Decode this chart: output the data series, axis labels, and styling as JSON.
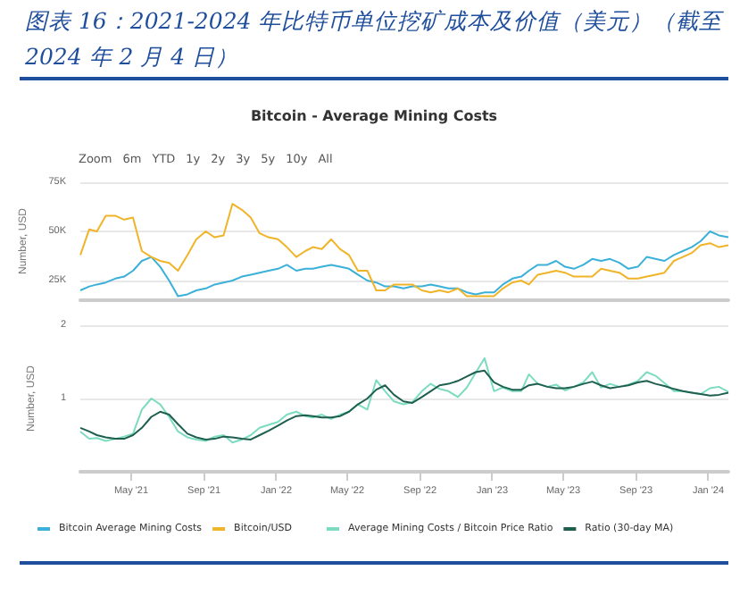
{
  "chart_data": [
    {
      "type": "line",
      "title": "图表 16：2021-2024 年比特币单位挖矿成本及价值（美元）（截至 2024 年 2 月 4 日）",
      "subtitle": "Bitcoin - Average Mining Costs",
      "ylabel": "Number, USD",
      "annotations": [
        "Zoom",
        "6m",
        "YTD",
        "1y",
        "2y",
        "3y",
        "5y",
        "10y",
        "All"
      ],
      "x": [
        "2021-02-04",
        "2021-02-19",
        "2021-03-04",
        "2021-03-19",
        "2021-04-04",
        "2021-04-19",
        "2021-05-04",
        "2021-05-19",
        "2021-06-04",
        "2021-06-19",
        "2021-07-04",
        "2021-07-19",
        "2021-08-04",
        "2021-08-19",
        "2021-09-04",
        "2021-09-19",
        "2021-10-04",
        "2021-10-19",
        "2021-11-04",
        "2021-11-19",
        "2021-12-04",
        "2021-12-19",
        "2022-01-04",
        "2022-01-19",
        "2022-02-04",
        "2022-02-19",
        "2022-03-04",
        "2022-03-19",
        "2022-04-04",
        "2022-04-19",
        "2022-05-04",
        "2022-05-19",
        "2022-06-04",
        "2022-06-19",
        "2022-07-04",
        "2022-07-19",
        "2022-08-04",
        "2022-08-19",
        "2022-09-04",
        "2022-09-19",
        "2022-10-04",
        "2022-10-19",
        "2022-11-04",
        "2022-11-19",
        "2022-12-04",
        "2022-12-19",
        "2023-01-04",
        "2023-01-19",
        "2023-02-04",
        "2023-02-19",
        "2023-03-04",
        "2023-03-19",
        "2023-04-04",
        "2023-04-19",
        "2023-05-04",
        "2023-05-19",
        "2023-06-04",
        "2023-06-19",
        "2023-07-04",
        "2023-07-19",
        "2023-08-04",
        "2023-08-19",
        "2023-09-04",
        "2023-09-19",
        "2023-10-04",
        "2023-10-19",
        "2023-11-04",
        "2023-11-19",
        "2023-12-04",
        "2023-12-19",
        "2024-01-04",
        "2024-01-19",
        "2024-02-04"
      ],
      "series": [
        {
          "name": "Bitcoin Average Mining Costs",
          "color": "#3bb0d8",
          "values": [
            20000,
            22000,
            23000,
            24000,
            26000,
            27000,
            30000,
            35000,
            37000,
            32000,
            25000,
            17000,
            18000,
            20000,
            21000,
            23000,
            24000,
            25000,
            27000,
            28000,
            29000,
            30000,
            31000,
            33000,
            30000,
            31000,
            31000,
            32000,
            33000,
            32000,
            31000,
            28000,
            25000,
            24000,
            22000,
            22000,
            21000,
            22000,
            22000,
            23000,
            22000,
            21000,
            21000,
            19000,
            18000,
            19000,
            19000,
            23000,
            26000,
            27000,
            30000,
            33000,
            33000,
            35000,
            32000,
            31000,
            33000,
            36000,
            35000,
            36000,
            34000,
            31000,
            32000,
            37000,
            36000,
            35000,
            38000,
            40000,
            42000,
            45000,
            50000,
            48000,
            47000
          ]
        },
        {
          "name": "Bitcoin/USD",
          "color": "#f0b429",
          "values": [
            38000,
            51000,
            50000,
            58000,
            58000,
            56000,
            57000,
            40000,
            37000,
            35000,
            34000,
            30000,
            38000,
            46000,
            50000,
            47000,
            48000,
            64000,
            61000,
            57000,
            49000,
            47000,
            46000,
            42000,
            37000,
            40000,
            42000,
            41000,
            46000,
            41000,
            38000,
            30000,
            30000,
            20000,
            20000,
            23000,
            23000,
            23000,
            20000,
            19000,
            20000,
            19000,
            21000,
            17000,
            17000,
            17000,
            17000,
            21000,
            24000,
            25000,
            23000,
            28000,
            29000,
            30000,
            29000,
            27000,
            27000,
            27000,
            31000,
            30000,
            29000,
            26000,
            26000,
            27000,
            28000,
            29000,
            35000,
            37000,
            39000,
            43000,
            44000,
            42000,
            43000
          ]
        }
      ],
      "xlim": [
        "2021-02-04",
        "2024-02-04"
      ],
      "ylim": [
        15000,
        75000
      ],
      "yticks": [
        {
          "value": 25000,
          "label": "25K"
        },
        {
          "value": 50000,
          "label": "50K"
        },
        {
          "value": 75000,
          "label": "75K"
        }
      ],
      "tick_labels": "y",
      "grid": "y",
      "legend": "bottom",
      "marker": "none",
      "line_style": "solid"
    },
    {
      "type": "line",
      "ylabel": "Number, USD",
      "x": [
        "2021-02-04",
        "2021-02-19",
        "2021-03-04",
        "2021-03-19",
        "2021-04-04",
        "2021-04-19",
        "2021-05-04",
        "2021-05-19",
        "2021-06-04",
        "2021-06-19",
        "2021-07-04",
        "2021-07-19",
        "2021-08-04",
        "2021-08-19",
        "2021-09-04",
        "2021-09-19",
        "2021-10-04",
        "2021-10-19",
        "2021-11-04",
        "2021-11-19",
        "2021-12-04",
        "2021-12-19",
        "2022-01-04",
        "2022-01-19",
        "2022-02-04",
        "2022-02-19",
        "2022-03-04",
        "2022-03-19",
        "2022-04-04",
        "2022-04-19",
        "2022-05-04",
        "2022-05-19",
        "2022-06-04",
        "2022-06-19",
        "2022-07-04",
        "2022-07-19",
        "2022-08-04",
        "2022-08-19",
        "2022-09-04",
        "2022-09-19",
        "2022-10-04",
        "2022-10-19",
        "2022-11-04",
        "2022-11-19",
        "2022-12-04",
        "2022-12-19",
        "2023-01-04",
        "2023-01-19",
        "2023-02-04",
        "2023-02-19",
        "2023-03-04",
        "2023-03-19",
        "2023-04-04",
        "2023-04-19",
        "2023-05-04",
        "2023-05-19",
        "2023-06-04",
        "2023-06-19",
        "2023-07-04",
        "2023-07-19",
        "2023-08-04",
        "2023-08-19",
        "2023-09-04",
        "2023-09-19",
        "2023-10-04",
        "2023-10-19",
        "2023-11-04",
        "2023-11-19",
        "2023-12-04",
        "2023-12-19",
        "2024-01-04",
        "2024-01-19",
        "2024-02-04"
      ],
      "series": [
        {
          "name": "Average Mining Costs / Bitcoin Price Ratio",
          "color": "#7ddcc0",
          "values": [
            0.55,
            0.45,
            0.46,
            0.42,
            0.45,
            0.48,
            0.52,
            0.85,
            1.0,
            0.92,
            0.75,
            0.55,
            0.47,
            0.44,
            0.42,
            0.48,
            0.5,
            0.4,
            0.44,
            0.5,
            0.6,
            0.64,
            0.68,
            0.78,
            0.82,
            0.76,
            0.74,
            0.78,
            0.72,
            0.78,
            0.82,
            0.92,
            0.85,
            1.25,
            1.1,
            0.96,
            0.92,
            0.95,
            1.1,
            1.2,
            1.13,
            1.1,
            1.02,
            1.15,
            1.35,
            1.55,
            1.1,
            1.15,
            1.1,
            1.1,
            1.33,
            1.2,
            1.16,
            1.19,
            1.11,
            1.16,
            1.22,
            1.36,
            1.15,
            1.2,
            1.16,
            1.19,
            1.24,
            1.36,
            1.31,
            1.21,
            1.1,
            1.1,
            1.08,
            1.06,
            1.14,
            1.16,
            1.09
          ]
        },
        {
          "name": "Ratio (30-day MA)",
          "color": "#1f5f4f",
          "values": [
            0.6,
            0.55,
            0.5,
            0.47,
            0.45,
            0.45,
            0.5,
            0.6,
            0.75,
            0.82,
            0.78,
            0.65,
            0.52,
            0.47,
            0.44,
            0.45,
            0.48,
            0.47,
            0.45,
            0.44,
            0.5,
            0.56,
            0.63,
            0.7,
            0.76,
            0.77,
            0.76,
            0.74,
            0.74,
            0.76,
            0.82,
            0.92,
            1.0,
            1.12,
            1.18,
            1.05,
            0.96,
            0.94,
            1.02,
            1.1,
            1.18,
            1.2,
            1.24,
            1.3,
            1.36,
            1.38,
            1.22,
            1.16,
            1.12,
            1.12,
            1.18,
            1.2,
            1.16,
            1.14,
            1.14,
            1.16,
            1.2,
            1.23,
            1.18,
            1.14,
            1.16,
            1.18,
            1.22,
            1.24,
            1.2,
            1.17,
            1.13,
            1.1,
            1.08,
            1.06,
            1.04,
            1.05,
            1.08
          ]
        }
      ],
      "xlim": [
        "2021-02-04",
        "2024-02-04"
      ],
      "xticks": [
        {
          "value": "2021-05-01",
          "label": "May '21"
        },
        {
          "value": "2021-09-01",
          "label": "Sep '21"
        },
        {
          "value": "2022-01-01",
          "label": "Jan '22"
        },
        {
          "value": "2022-05-01",
          "label": "May '22"
        },
        {
          "value": "2022-09-01",
          "label": "Sep '22"
        },
        {
          "value": "2023-01-01",
          "label": "Jan '23"
        },
        {
          "value": "2023-05-01",
          "label": "May '23"
        },
        {
          "value": "2023-09-01",
          "label": "Sep '23"
        },
        {
          "value": "2024-01-01",
          "label": "Jan '24"
        }
      ],
      "ylim": [
        0,
        2
      ],
      "yticks": [
        {
          "value": 0,
          "label": null
        },
        1,
        2
      ],
      "grid": "y",
      "legend": "bottom",
      "marker": "none",
      "line_style": "solid"
    }
  ]
}
